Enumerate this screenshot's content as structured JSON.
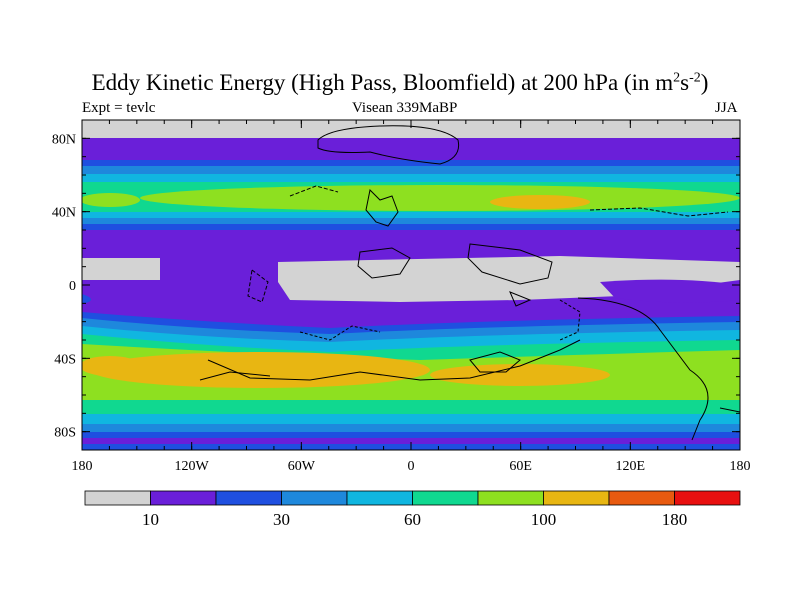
{
  "title": {
    "main": "Eddy Kinetic Energy (High Pass, Bloomfield) at 200 hPa (in m",
    "exp1": "2",
    "mid": "s",
    "exp2": "-2",
    "end": ")"
  },
  "subtitle": {
    "left": "Expt = tevlc",
    "center": "Visean 339MaBP",
    "right": "JJA"
  },
  "map": {
    "y_ticks": [
      {
        "label": "80N",
        "lat": 80
      },
      {
        "label": "40N",
        "lat": 40
      },
      {
        "label": "0",
        "lat": 0
      },
      {
        "label": "40S",
        "lat": -40
      },
      {
        "label": "80S",
        "lat": -80
      }
    ],
    "x_ticks": [
      {
        "label": "180",
        "lon": -180
      },
      {
        "label": "120W",
        "lon": -120
      },
      {
        "label": "60W",
        "lon": -60
      },
      {
        "label": "0",
        "lon": 0
      },
      {
        "label": "60E",
        "lon": 60
      },
      {
        "label": "120E",
        "lon": 120
      },
      {
        "label": "180",
        "lon": 180
      }
    ],
    "minor_lon_step": 15,
    "minor_lat_step": 10
  },
  "colorbar": {
    "colors": [
      "#d3d3d3",
      "#6a1fd9",
      "#1f4fe0",
      "#1e88dc",
      "#10b6e0",
      "#10d890",
      "#8ee020",
      "#e8b612",
      "#e85a10",
      "#e81010"
    ],
    "labels": [
      {
        "text": "10",
        "index": 1
      },
      {
        "text": "30",
        "index": 3
      },
      {
        "text": "60",
        "index": 5
      },
      {
        "text": "100",
        "index": 7
      },
      {
        "text": "180",
        "index": 9
      }
    ]
  }
}
